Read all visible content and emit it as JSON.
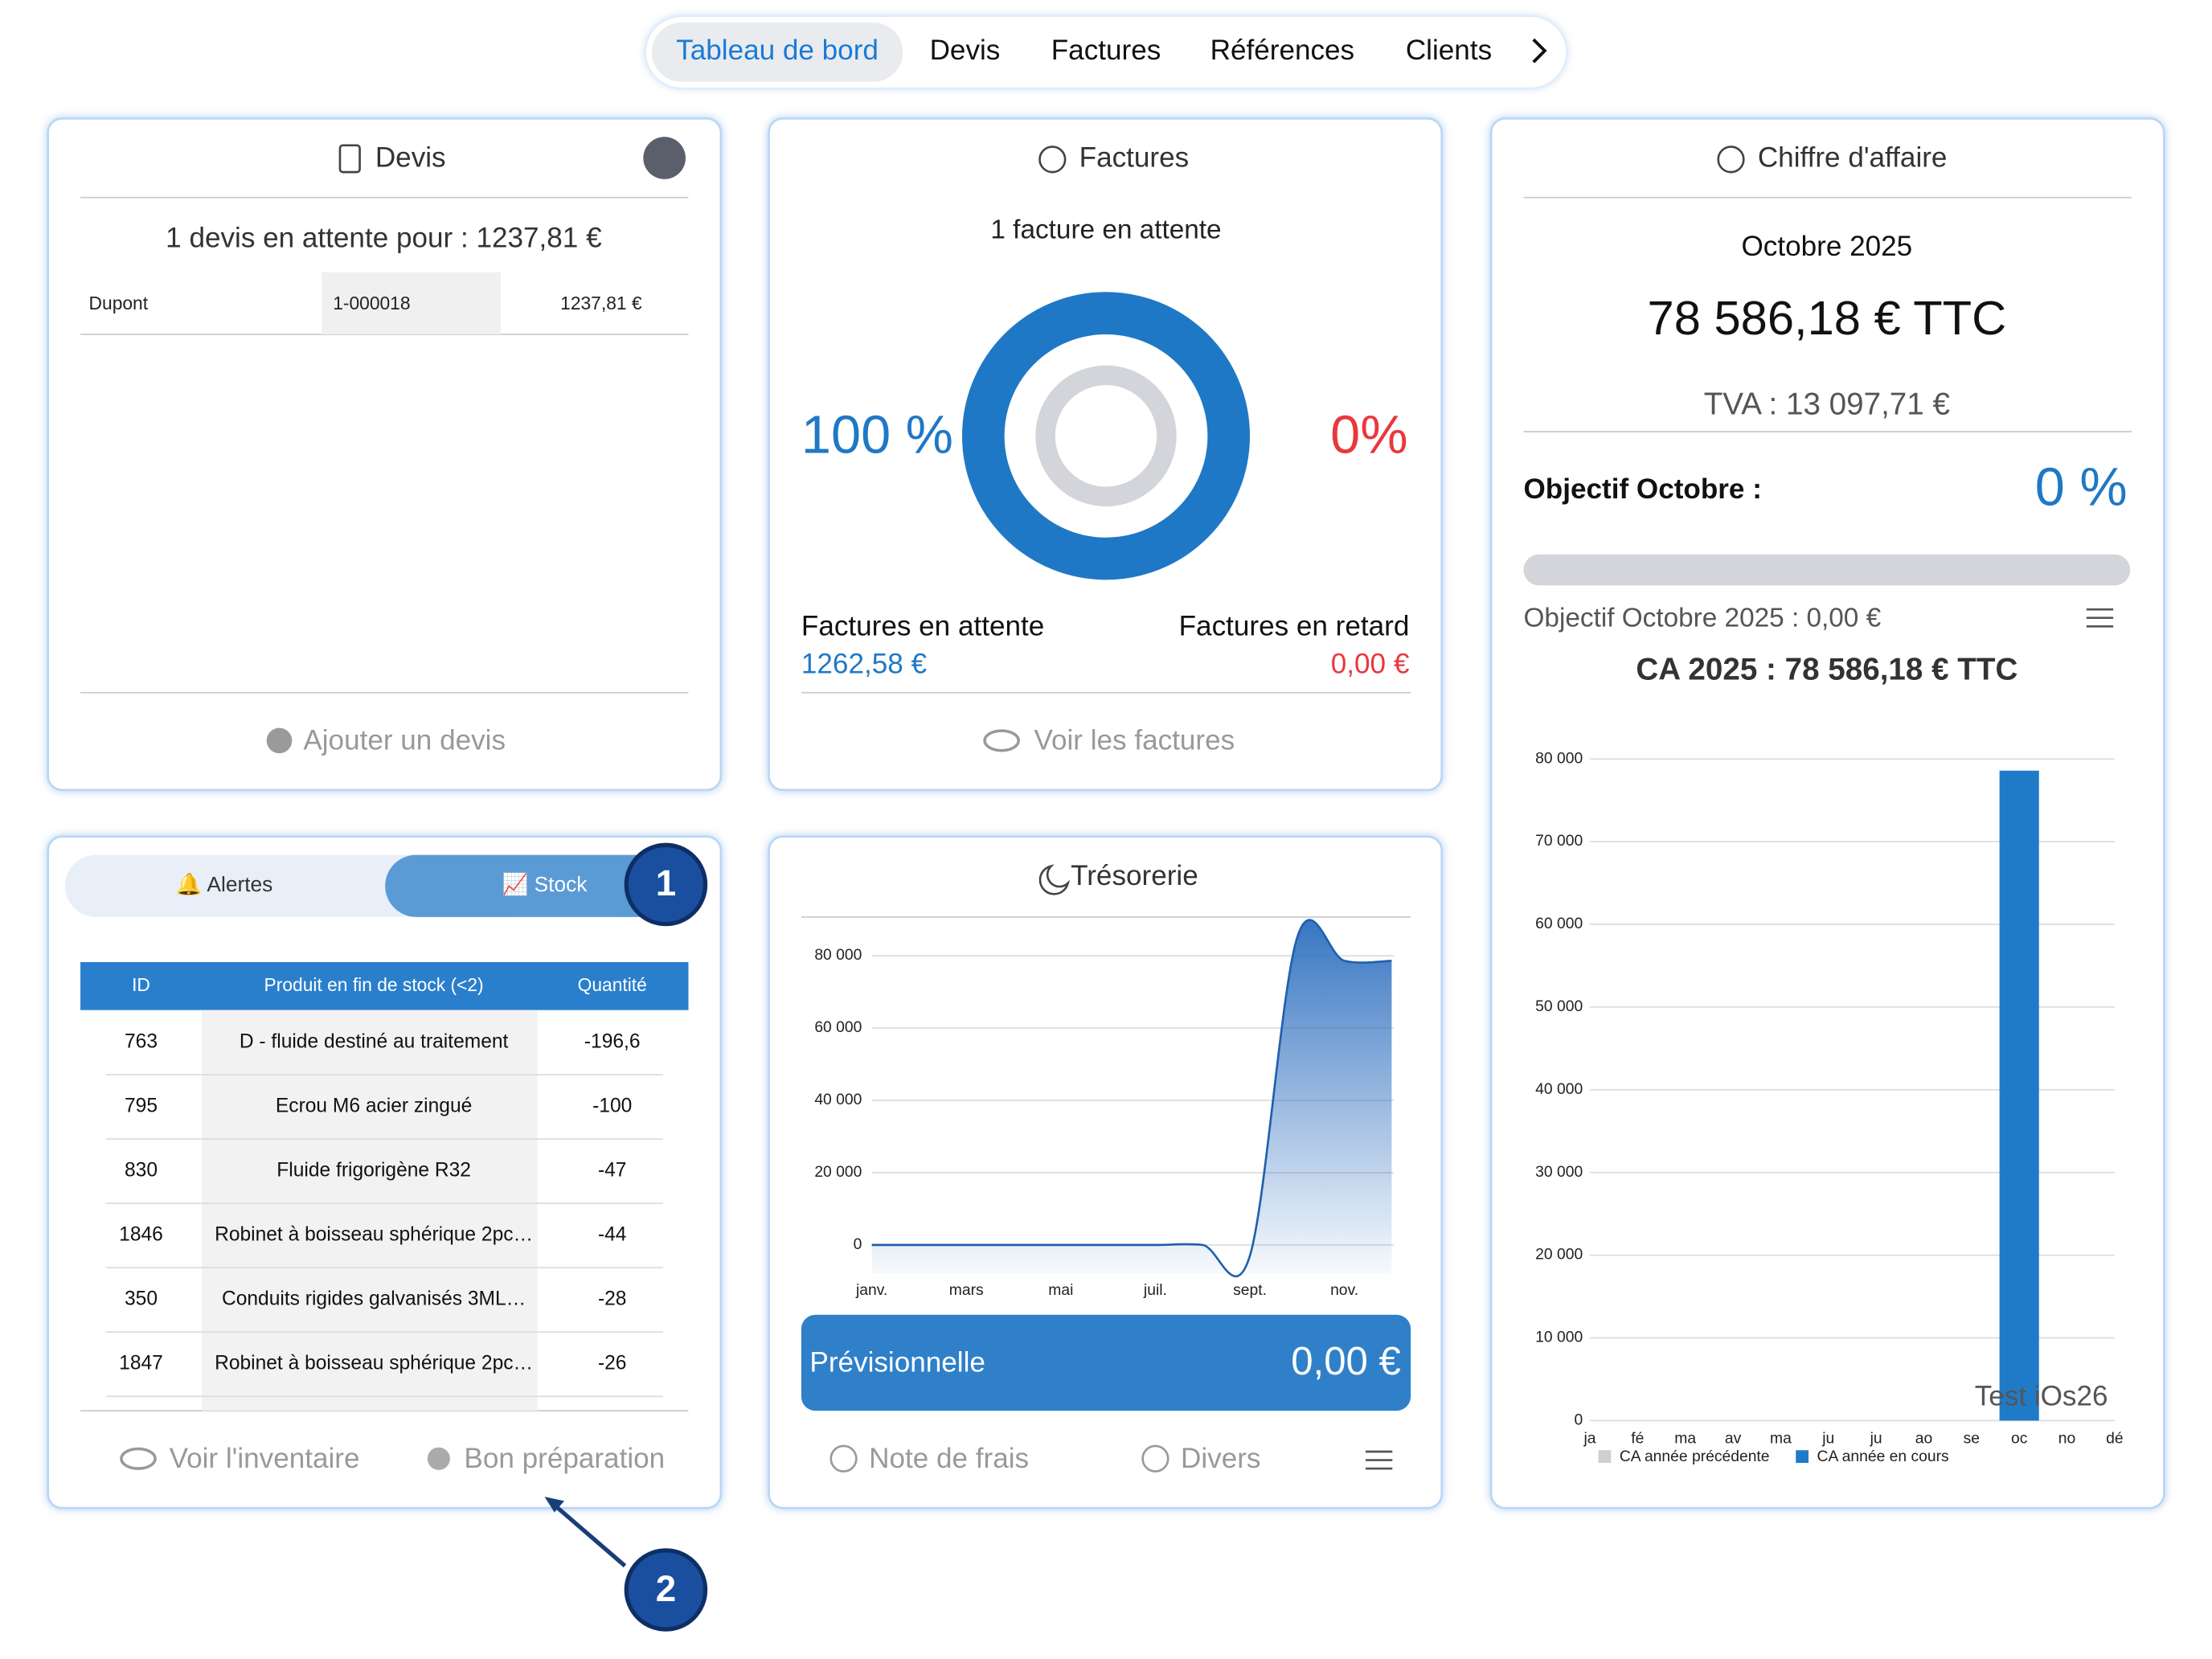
{
  "nav": {
    "tabs": [
      "Tableau de bord",
      "Devis",
      "Factures",
      "Références",
      "Clients"
    ]
  },
  "devis": {
    "title": "Devis",
    "summary": "1 devis en attente pour : 1237,81 €",
    "rows": [
      [
        "Dupont",
        "1-000018",
        "1237,81 €"
      ]
    ],
    "action": "Ajouter un devis"
  },
  "factures": {
    "title": "Factures",
    "summary": "1 facture en attente",
    "paid_pct": {
      "value": 100,
      "label": "100 %"
    },
    "late_pct": {
      "value": 0,
      "label": "0%"
    },
    "pending_label": "Factures en attente",
    "pending_amount": "1262,58 €",
    "late_label": "Factures en retard",
    "late_amount": "0,00 €",
    "action": "Voir les factures"
  },
  "ca": {
    "title": "Chiffre d'affaire",
    "month": "Octobre 2025",
    "total": "78 586,18 € TTC",
    "tva": "TVA : 13 097,71 €",
    "objective_label": "Objectif Octobre :",
    "objective_pct": {
      "value": 0,
      "label": "0 %"
    },
    "objective_text": "Objectif Octobre 2025 : 0,00 €",
    "year_total": "CA 2025 : 78 586,18 €  TTC",
    "chart": {
      "type": "bar",
      "categories": [
        "ja",
        "fé",
        "ma",
        "av",
        "ma",
        "ju",
        "ju",
        "ao",
        "se",
        "oc",
        "no",
        "dé"
      ],
      "series": [
        {
          "name": "CA année précédente",
          "color": "#cfcfcf",
          "values": [
            0,
            0,
            0,
            0,
            0,
            0,
            0,
            0,
            0,
            0,
            0,
            0
          ]
        },
        {
          "name": "CA année en cours",
          "color": "#1f7bc8",
          "values": [
            0,
            0,
            0,
            0,
            0,
            0,
            0,
            0,
            0,
            78586.18,
            0,
            0
          ]
        }
      ],
      "ylim": [
        0,
        80000
      ],
      "yticks": [
        0,
        {
          "value": 10000,
          "label": "10 000"
        },
        {
          "value": 20000,
          "label": "20 000"
        },
        {
          "value": 30000,
          "label": "30 000"
        },
        {
          "value": 40000,
          "label": "40 000"
        },
        {
          "value": 50000,
          "label": "50 000"
        },
        {
          "value": 60000,
          "label": "60 000"
        },
        {
          "value": 70000,
          "label": "70 000"
        },
        {
          "value": 80000,
          "label": "80 000"
        }
      ],
      "watermark": "Test iOs26"
    }
  },
  "stock": {
    "tabs": [
      "🔔 Alertes",
      "📈 Stock"
    ],
    "columns": [
      "ID",
      "Produit en fin de stock (<2)",
      "Quantité"
    ],
    "rows": [
      [
        "763",
        "D - fluide destiné au traitement",
        "-196,6"
      ],
      [
        "795",
        "Ecrou M6 acier zingué",
        "-100"
      ],
      [
        "830",
        "Fluide frigorigène R32",
        "-47"
      ],
      [
        "1846",
        "Robinet à boisseau sphérique 2pc…",
        "-44"
      ],
      [
        "350",
        "Conduits rigides galvanisés 3ML…",
        "-28"
      ],
      [
        "1847",
        "Robinet à boisseau sphérique 2pc…",
        "-26"
      ]
    ],
    "actions": [
      "Voir l'inventaire",
      "Bon préparation"
    ]
  },
  "tresorerie": {
    "title": "Trésorerie",
    "chart": {
      "type": "area",
      "categories": [
        "janv.",
        null,
        "mars",
        null,
        "mai",
        null,
        "juil.",
        null,
        "sept.",
        null,
        "nov.",
        null
      ],
      "values": [
        0,
        0,
        0,
        0,
        0,
        0,
        0,
        0,
        -3000,
        85000,
        78586,
        78586
      ],
      "ylim": [
        -8000,
        88000
      ],
      "yticks": [
        0,
        {
          "value": 20000,
          "label": "20 000"
        },
        {
          "value": 40000,
          "label": "40 000"
        },
        {
          "value": 60000,
          "label": "60 000"
        },
        {
          "value": 80000,
          "label": "80 000"
        }
      ]
    },
    "forecast_label": "Prévisionnelle",
    "forecast_amount": "0,00 €",
    "actions": [
      "Note de frais",
      "Divers"
    ]
  },
  "annotations": [
    "1",
    "2"
  ]
}
